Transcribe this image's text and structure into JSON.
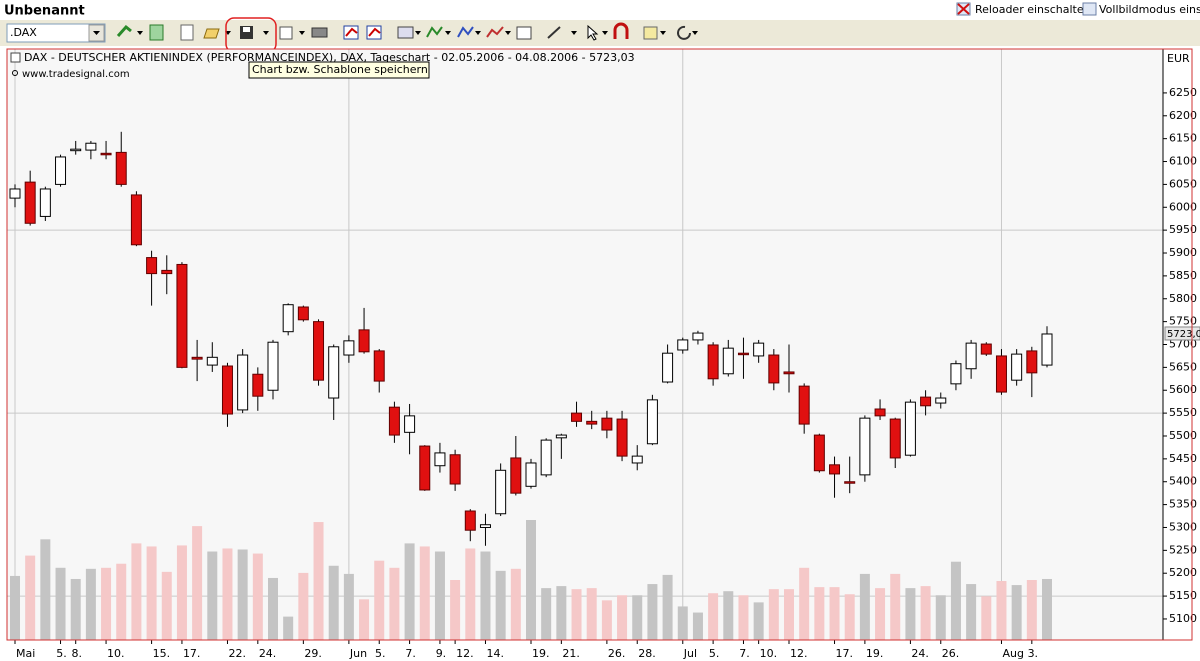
{
  "window": {
    "title": "Unbenannt",
    "links": [
      "Reloader einschalten",
      "Vollbildmodus einscha"
    ]
  },
  "toolbar": {
    "symbol": ".DAX",
    "tooltip": "Chart bzw. Schablone speichern"
  },
  "chart_data": {
    "type": "candlestick",
    "title": "DAX  - DEUTSCHER AKTIENINDEX (PERFORMANCEINDEX), DAX, Tageschart - 02.05.2006 - 04.08.2006 - 5723,03",
    "source": "www.tradesignal.com",
    "y_axis_label": "EUR",
    "categories": [
      "Mai",
      null,
      null,
      "5.",
      "8.",
      null,
      "10.",
      null,
      null,
      "15.",
      null,
      "17.",
      null,
      null,
      "22.",
      null,
      "24.",
      null,
      null,
      "29.",
      null,
      null,
      "Jun",
      null,
      "5.",
      null,
      "7.",
      null,
      "9.",
      "12.",
      null,
      "14.",
      null,
      null,
      "19.",
      null,
      "21.",
      null,
      null,
      "26.",
      null,
      "28.",
      null,
      null,
      "Jul",
      null,
      "5.",
      null,
      "7.",
      "10.",
      null,
      "12.",
      null,
      null,
      "17.",
      null,
      "19.",
      null,
      null,
      "24.",
      null,
      "26.",
      null,
      null,
      null,
      "Aug",
      null,
      "3.",
      null
    ],
    "open": [
      6020,
      6055,
      5980,
      6050,
      6125,
      6125,
      6118,
      6120,
      6027,
      5890,
      5862,
      5875,
      5672,
      5655,
      5653,
      5557,
      5635,
      5600,
      5728,
      5782,
      5750,
      5583,
      5677,
      5732,
      5686,
      5563,
      5508,
      5478,
      5435,
      5459,
      5336,
      5300,
      5330,
      5452,
      5390,
      5415,
      5496,
      5550,
      5532,
      5539,
      5537,
      5441,
      5483,
      5618,
      5688,
      5710,
      5699,
      5636,
      5681,
      5675,
      5677,
      5640,
      5609,
      5502,
      5437,
      5400,
      5415,
      5559,
      5537,
      5458,
      5585,
      5572,
      5614,
      5647,
      5701,
      5675,
      5622,
      5686,
      5655
    ],
    "high": [
      6050,
      6080,
      6045,
      6115,
      6145,
      6145,
      6145,
      6165,
      6035,
      5905,
      5895,
      5880,
      5710,
      5705,
      5660,
      5690,
      5650,
      5710,
      5790,
      5785,
      5755,
      5700,
      5720,
      5780,
      5690,
      5575,
      5570,
      5480,
      5485,
      5470,
      5340,
      5330,
      5440,
      5500,
      5450,
      5495,
      5505,
      5575,
      5555,
      5555,
      5555,
      5480,
      5590,
      5700,
      5715,
      5730,
      5705,
      5710,
      5715,
      5710,
      5690,
      5700,
      5615,
      5505,
      5455,
      5455,
      5545,
      5580,
      5540,
      5580,
      5600,
      5595,
      5665,
      5710,
      5705,
      5690,
      5690,
      5695,
      5740
    ],
    "low": [
      6000,
      5960,
      5970,
      6045,
      6115,
      6105,
      6105,
      6045,
      5915,
      5785,
      5810,
      5648,
      5620,
      5640,
      5520,
      5550,
      5555,
      5580,
      5720,
      5750,
      5610,
      5535,
      5660,
      5680,
      5595,
      5485,
      5460,
      5380,
      5420,
      5380,
      5270,
      5260,
      5325,
      5370,
      5385,
      5410,
      5450,
      5520,
      5515,
      5495,
      5445,
      5425,
      5480,
      5615,
      5680,
      5700,
      5610,
      5630,
      5625,
      5660,
      5600,
      5595,
      5505,
      5420,
      5365,
      5375,
      5400,
      5535,
      5430,
      5455,
      5545,
      5560,
      5600,
      5625,
      5675,
      5590,
      5610,
      5585,
      5650
    ],
    "close": [
      6040,
      5965,
      6040,
      6110,
      6127,
      6140,
      6116,
      6050,
      5918,
      5855,
      5855,
      5650,
      5668,
      5672,
      5548,
      5677,
      5587,
      5705,
      5787,
      5754,
      5622,
      5695,
      5708,
      5684,
      5620,
      5502,
      5544,
      5382,
      5463,
      5395,
      5294,
      5306,
      5425,
      5375,
      5441,
      5491,
      5502,
      5532,
      5526,
      5513,
      5456,
      5456,
      5579,
      5681,
      5710,
      5725,
      5625,
      5692,
      5678,
      5703,
      5616,
      5636,
      5526,
      5424,
      5417,
      5398,
      5539,
      5544,
      5452,
      5574,
      5566,
      5583,
      5658,
      5703,
      5679,
      5596,
      5679,
      5638,
      5723
    ],
    "volume": [
      63,
      83,
      99,
      71,
      60,
      70,
      71,
      75,
      95,
      92,
      67,
      93,
      112,
      87,
      90,
      89,
      85,
      61,
      23,
      66,
      116,
      73,
      65,
      40,
      78,
      71,
      95,
      92,
      87,
      59,
      90,
      87,
      68,
      70,
      118,
      51,
      53,
      50,
      51,
      39,
      44,
      44,
      55,
      64,
      33,
      27,
      46,
      48,
      44,
      37,
      50,
      50,
      71,
      52,
      52,
      45,
      65,
      51,
      65,
      51,
      53,
      44,
      77,
      55,
      43,
      58,
      54,
      59,
      60
    ],
    "ylim": [
      5054,
      6346
    ],
    "yticks": [
      5100,
      5150,
      5200,
      5250,
      5300,
      5350,
      5400,
      5450,
      5500,
      5550,
      5600,
      5650,
      5700,
      5750,
      5800,
      5850,
      5900,
      5950,
      6000,
      6050,
      6100,
      6150,
      6200,
      6250
    ],
    "last_price": {
      "value": 5723,
      "label": "5723,0"
    },
    "up_color": "#ffffff",
    "down_color": "#e01010",
    "volume_up_color": "#c4c4c4",
    "volume_down_color": "#f5c8c8"
  }
}
